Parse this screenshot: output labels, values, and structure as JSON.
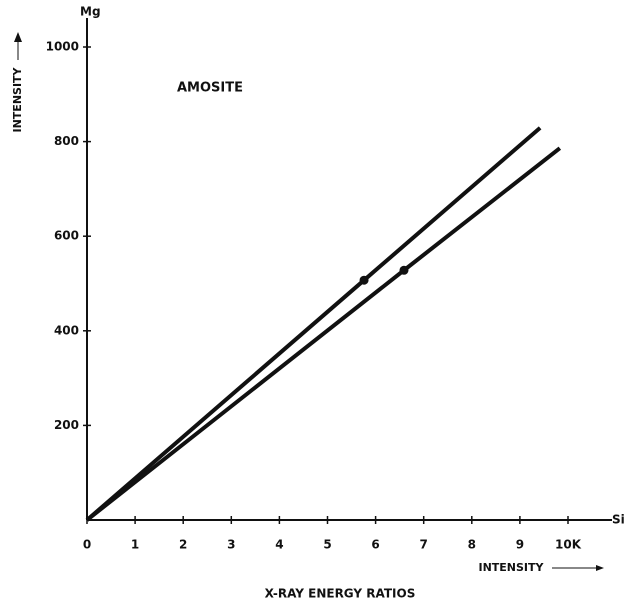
{
  "chart_data": {
    "type": "line",
    "title": "AMOSITE",
    "y_axis_label": "INTENSITY",
    "y_axis_unit": "Mg",
    "x_axis_label": "INTENSITY",
    "x_axis_unit": "Si",
    "caption": "X-RAY ENERGY RATIOS",
    "xlim": [
      0,
      10
    ],
    "ylim": [
      0,
      1000
    ],
    "xticks": [
      0,
      1,
      2,
      3,
      4,
      5,
      6,
      7,
      8,
      9,
      {
        "value": 10,
        "label": "10K"
      }
    ],
    "yticks": [
      200,
      400,
      600,
      800,
      1000
    ],
    "series": [
      {
        "color": "#111111",
        "x": [
          0,
          5.76,
          9.42
        ],
        "values": [
          0,
          507,
          829
        ]
      },
      {
        "color": "#111111",
        "x": [
          0,
          6.59,
          9.83
        ],
        "values": [
          0,
          528,
          786
        ]
      }
    ]
  }
}
